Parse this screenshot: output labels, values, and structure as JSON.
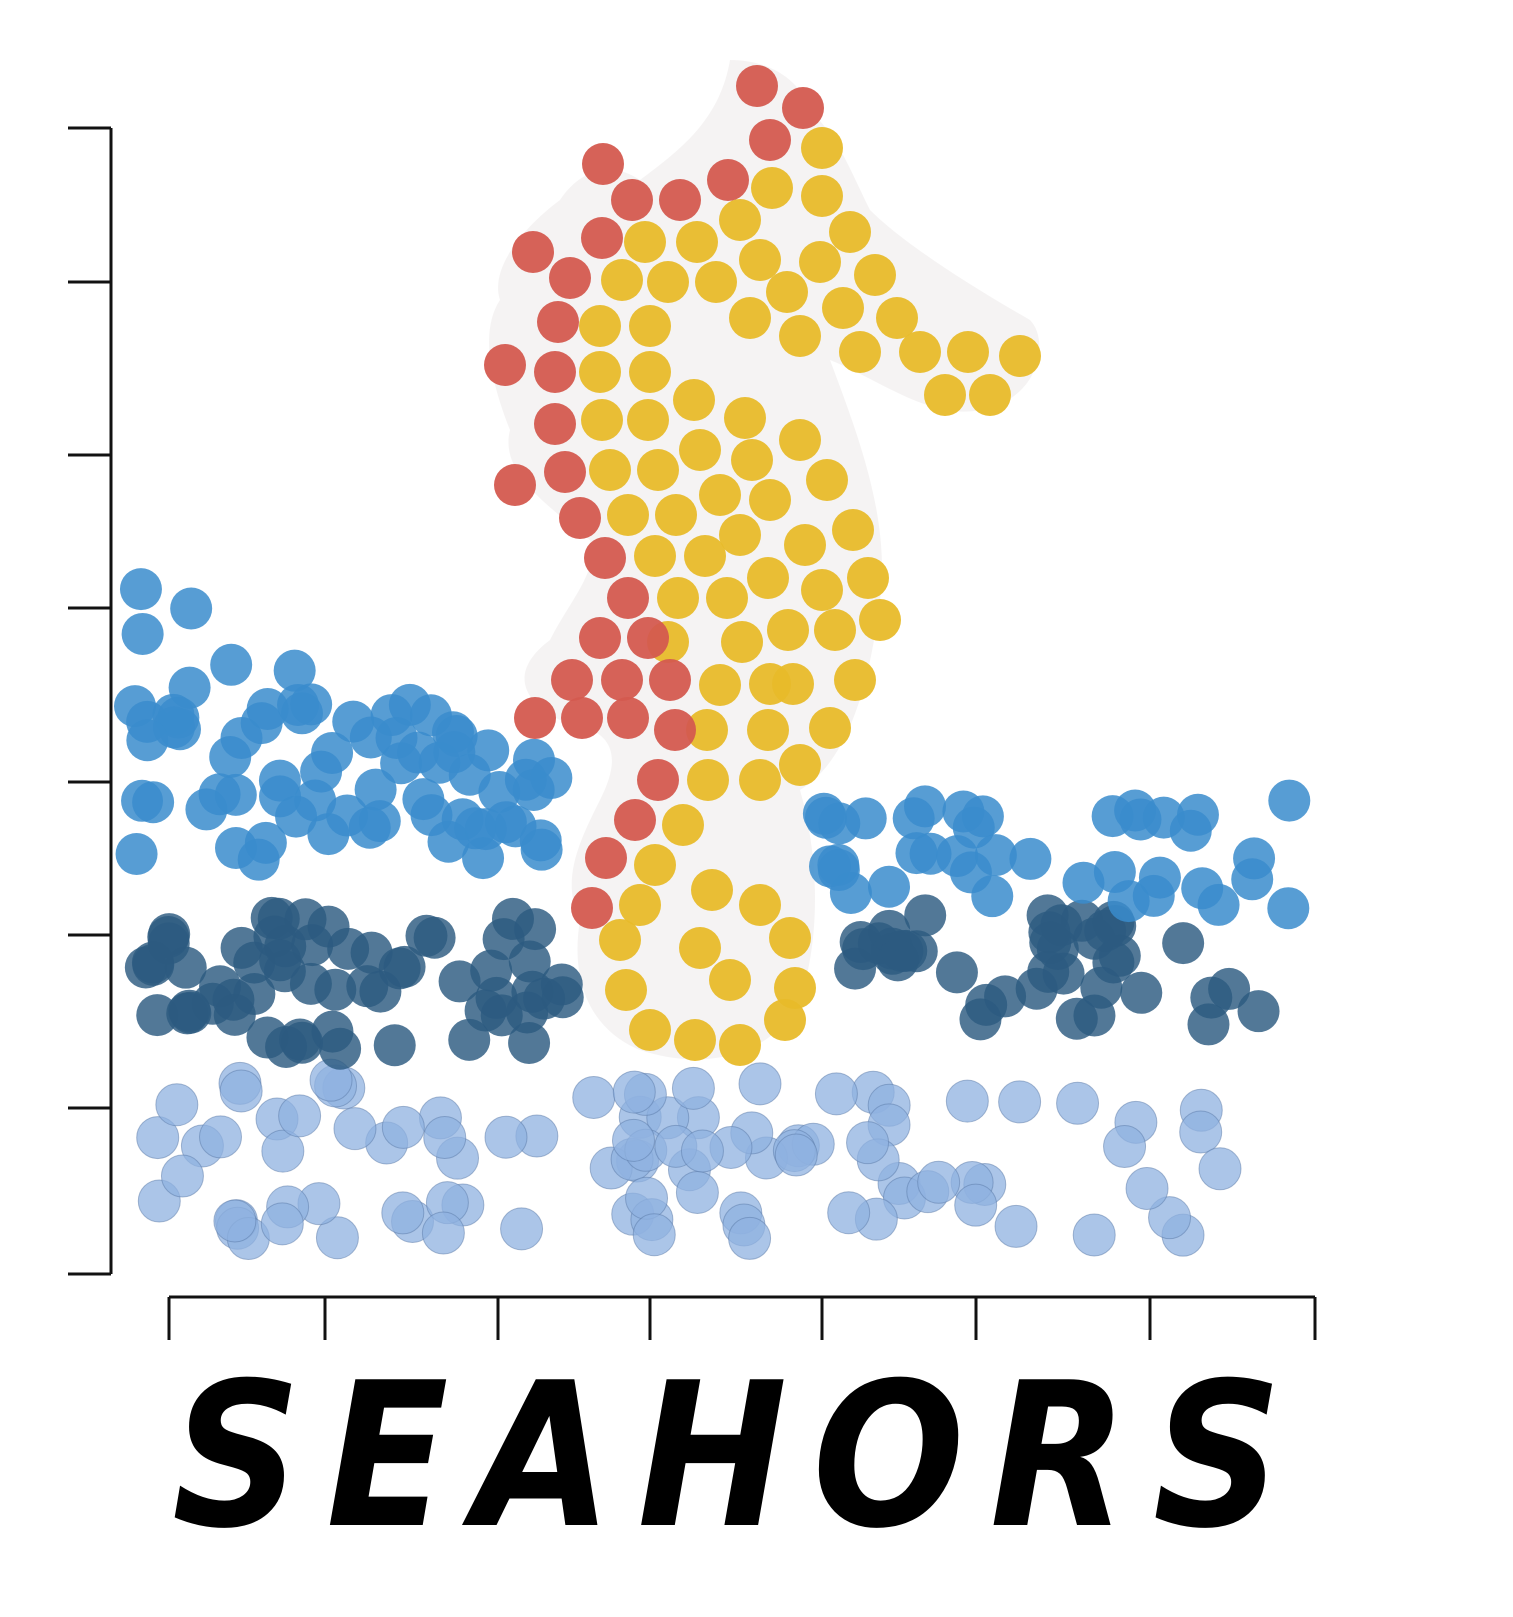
{
  "logo": {
    "wordmark": "SEAHORS",
    "colors": {
      "seahorse_outline": "#d45a4f",
      "seahorse_body": "#e8bb2a",
      "wave_mid_blue": "#3a8ccc",
      "wave_dark_blue": "#2c5a80",
      "wave_light_blue": "#8fb2e0",
      "axis": "#111111",
      "halo": "#f2f0f0"
    },
    "axes": {
      "y_ticks": 8,
      "x_ticks": 8
    }
  }
}
